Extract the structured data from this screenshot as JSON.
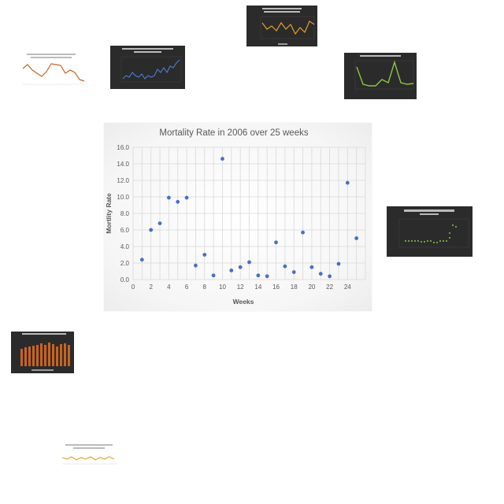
{
  "chart_data": {
    "type": "scatter",
    "title": "Mortality  Rate in 2006 over 25 weeks",
    "xlabel": "Weeks",
    "ylabel": "Mortlity Rate",
    "xlim": [
      0,
      26
    ],
    "ylim": [
      0,
      16
    ],
    "x_ticks": [
      "0",
      "2",
      "4",
      "6",
      "8",
      "10",
      "12",
      "14",
      "16",
      "18",
      "20",
      "22",
      "24"
    ],
    "y_ticks": [
      "0.0",
      "2.0",
      "4.0",
      "6.0",
      "8.0",
      "10.0",
      "12.0",
      "14.0",
      "16.0"
    ],
    "grid": true,
    "marker_color": "#4472c4",
    "series": [
      {
        "x": [
          1,
          2,
          3,
          4,
          5,
          6,
          7,
          8,
          9,
          10,
          11,
          12,
          13,
          14,
          15,
          16,
          17,
          18,
          19,
          20,
          21,
          22,
          23,
          24,
          25
        ],
        "y": [
          2.4,
          6.0,
          6.8,
          9.9,
          9.4,
          9.9,
          1.7,
          3.0,
          0.5,
          14.6,
          1.1,
          1.5,
          2.1,
          0.5,
          0.4,
          4.5,
          1.6,
          0.9,
          5.7,
          1.5,
          0.7,
          0.4,
          1.9,
          11.7,
          5.0
        ]
      }
    ]
  },
  "thumbnails": {
    "top_center": {
      "title": "Air quality Measures on the national environmental health tracking network in Iowa",
      "line_color": "#e8a020"
    },
    "top_left_orange": {
      "title": "Air quality Measures on the national environmental health tracking network in Iowa",
      "line_color": "#c8641e"
    },
    "dark_blue": {
      "title": "Sex ratio by age 15 year olds (UNHCR 2017) in Eastern Africa",
      "line_color": "#4a7fd8"
    },
    "dark_green": {
      "title": "Number of deaths under five years in 1990",
      "line_color": "#8cc63f"
    },
    "dark_scatter": {
      "title": "% Share of female population in Nepal",
      "marker_color": "#8cc63f"
    },
    "dark_bar": {
      "title": "Number of employed and unemployed",
      "bar_color": "#c8641e"
    },
    "bottom_light": {
      "title": "Sex ratio by age 65 year olds (UNHCR 2017) in the year 1972",
      "line_color": "#e8a020"
    }
  }
}
